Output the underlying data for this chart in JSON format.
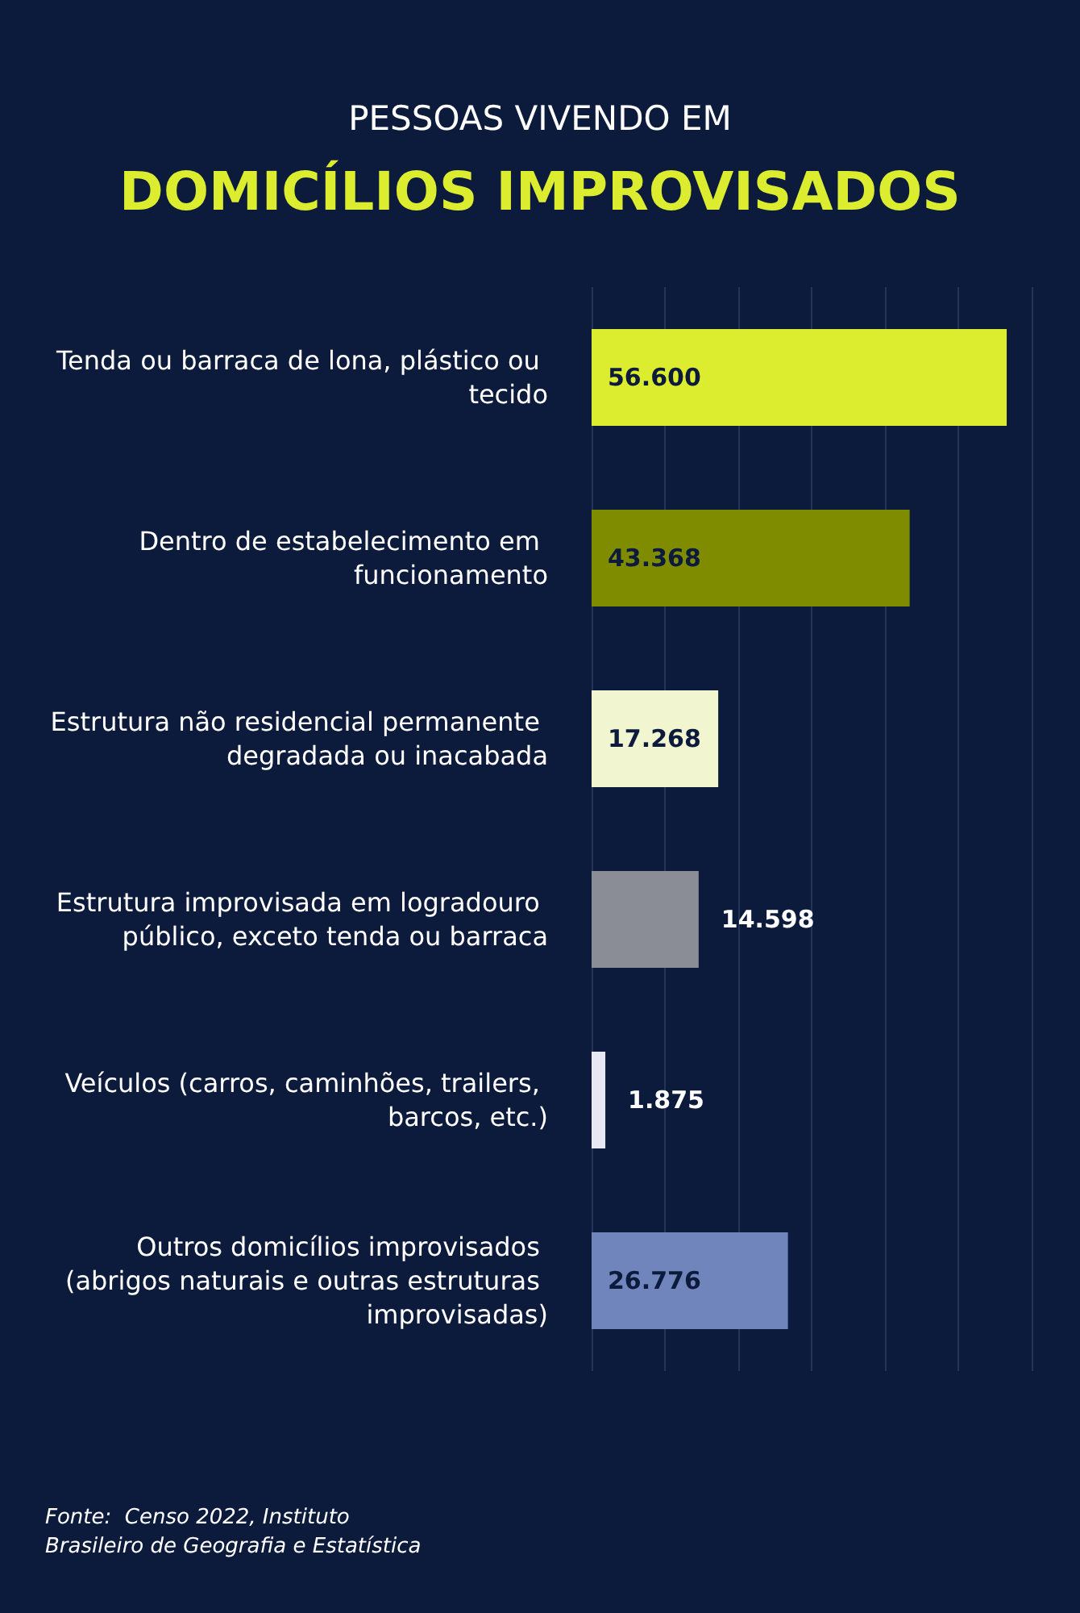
{
  "chart_data": {
    "type": "bar",
    "orientation": "horizontal",
    "title": "PESSOAS VIVENDO EM",
    "subtitle": "DOMICÍLIOS IMPROVISADOS",
    "categories": [
      "Tenda ou barraca de lona, plástico ou tecido",
      "Dentro de estabelecimento em funcionamento",
      "Estrutura não residencial permanente degradada ou inacabada",
      "Estrutura improvisada em logradouro público, exceto tenda ou barraca",
      "Veículos (carros, caminhões, trailers, barcos, etc.)",
      "Outros domicílios improvisados (abrigos naturais e outras estruturas improvisadas)"
    ],
    "values": [
      56600,
      43368,
      17268,
      14598,
      1875,
      26776
    ],
    "value_labels": [
      "56.600",
      "43.368",
      "17.268",
      "14.598",
      "1.875",
      "26.776"
    ],
    "colors": [
      "#dcec2f",
      "#7f8c00",
      "#f1f5d0",
      "#8a8d96",
      "#e8e8f5",
      "#6f85bb"
    ],
    "xlim": [
      0,
      60000
    ],
    "xticks": [
      {
        "value": 0,
        "label": null
      },
      {
        "value": 10000,
        "label": null
      },
      {
        "value": 20000,
        "label": null
      },
      {
        "value": 30000,
        "label": null
      },
      {
        "value": 40000,
        "label": null
      },
      {
        "value": 50000,
        "label": null
      },
      {
        "value": 60000,
        "label": null
      }
    ],
    "tick_labels": "y",
    "grid": "x",
    "annotations": [
      "Fonte:  Censo 2022, Instituto Brasileiro de Geografia e Estatística"
    ]
  }
}
